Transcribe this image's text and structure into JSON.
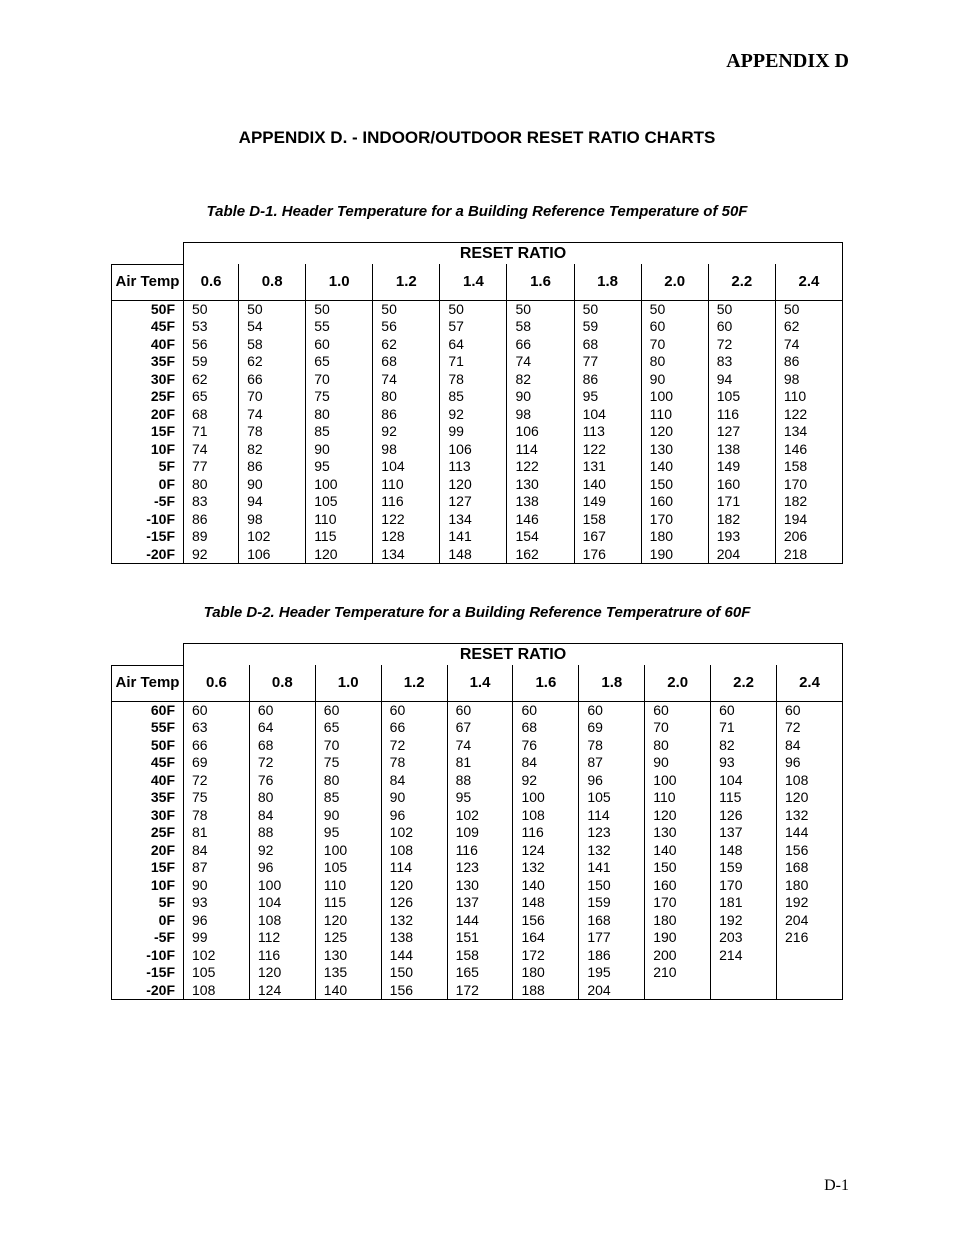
{
  "appendix_label": "APPENDIX D",
  "appendix_title": "APPENDIX D. - INDOOR/OUTDOOR RESET RATIO CHARTS",
  "page_number": "D-1",
  "tables": {
    "t1": {
      "caption": "Table D-1.  Header Temperature for a Building Reference Temperature of 50F",
      "reset_ratio_label": "RESET RATIO",
      "air_temp_label": "Air Temp",
      "columns": [
        "0.6",
        "0.8",
        "1.0",
        "1.2",
        "1.4",
        "1.6",
        "1.8",
        "2.0",
        "2.2",
        "2.4"
      ],
      "rows": [
        {
          "label": "50F",
          "v": [
            "50",
            "50",
            "50",
            "50",
            "50",
            "50",
            "50",
            "50",
            "50",
            "50"
          ]
        },
        {
          "label": "45F",
          "v": [
            "53",
            "54",
            "55",
            "56",
            "57",
            "58",
            "59",
            "60",
            "60",
            "62"
          ]
        },
        {
          "label": "40F",
          "v": [
            "56",
            "58",
            "60",
            "62",
            "64",
            "66",
            "68",
            "70",
            "72",
            "74"
          ]
        },
        {
          "label": "35F",
          "v": [
            "59",
            "62",
            "65",
            "68",
            "71",
            "74",
            "77",
            "80",
            "83",
            "86"
          ]
        },
        {
          "label": "30F",
          "v": [
            "62",
            "66",
            "70",
            "74",
            "78",
            "82",
            "86",
            "90",
            "94",
            "98"
          ]
        },
        {
          "label": "25F",
          "v": [
            "65",
            "70",
            "75",
            "80",
            "85",
            "90",
            "95",
            "100",
            "105",
            "110"
          ]
        },
        {
          "label": "20F",
          "v": [
            "68",
            "74",
            "80",
            "86",
            "92",
            "98",
            "104",
            "110",
            "116",
            "122"
          ]
        },
        {
          "label": "15F",
          "v": [
            "71",
            "78",
            "85",
            "92",
            "99",
            "106",
            "113",
            "120",
            "127",
            "134"
          ]
        },
        {
          "label": "10F",
          "v": [
            "74",
            "82",
            "90",
            "98",
            "106",
            "114",
            "122",
            "130",
            "138",
            "146"
          ]
        },
        {
          "label": "5F",
          "v": [
            "77",
            "86",
            "95",
            "104",
            "113",
            "122",
            "131",
            "140",
            "149",
            "158"
          ]
        },
        {
          "label": "0F",
          "v": [
            "80",
            "90",
            "100",
            "110",
            "120",
            "130",
            "140",
            "150",
            "160",
            "170"
          ]
        },
        {
          "label": "-5F",
          "v": [
            "83",
            "94",
            "105",
            "116",
            "127",
            "138",
            "149",
            "160",
            "171",
            "182"
          ]
        },
        {
          "label": "-10F",
          "v": [
            "86",
            "98",
            "110",
            "122",
            "134",
            "146",
            "158",
            "170",
            "182",
            "194"
          ]
        },
        {
          "label": "-15F",
          "v": [
            "89",
            "102",
            "115",
            "128",
            "141",
            "154",
            "167",
            "180",
            "193",
            "206"
          ]
        },
        {
          "label": "-20F",
          "v": [
            "92",
            "106",
            "120",
            "134",
            "148",
            "162",
            "176",
            "190",
            "204",
            "218"
          ]
        }
      ]
    },
    "t2": {
      "caption": "Table D-2.  Header Temperature for a Building Reference Temperatrure of 60F",
      "reset_ratio_label": "RESET RATIO",
      "air_temp_label": "Air Temp",
      "columns": [
        "0.6",
        "0.8",
        "1.0",
        "1.2",
        "1.4",
        "1.6",
        "1.8",
        "2.0",
        "2.2",
        "2.4"
      ],
      "rows": [
        {
          "label": "60F",
          "v": [
            "60",
            "60",
            "60",
            "60",
            "60",
            "60",
            "60",
            "60",
            "60",
            "60"
          ]
        },
        {
          "label": "55F",
          "v": [
            "63",
            "64",
            "65",
            "66",
            "67",
            "68",
            "69",
            "70",
            "71",
            "72"
          ]
        },
        {
          "label": "50F",
          "v": [
            "66",
            "68",
            "70",
            "72",
            "74",
            "76",
            "78",
            "80",
            "82",
            "84"
          ]
        },
        {
          "label": "45F",
          "v": [
            "69",
            "72",
            "75",
            "78",
            "81",
            "84",
            "87",
            "90",
            "93",
            "96"
          ]
        },
        {
          "label": "40F",
          "v": [
            "72",
            "76",
            "80",
            "84",
            "88",
            "92",
            "96",
            "100",
            "104",
            "108"
          ]
        },
        {
          "label": "35F",
          "v": [
            "75",
            "80",
            "85",
            "90",
            "95",
            "100",
            "105",
            "110",
            "115",
            "120"
          ]
        },
        {
          "label": "30F",
          "v": [
            "78",
            "84",
            "90",
            "96",
            "102",
            "108",
            "114",
            "120",
            "126",
            "132"
          ]
        },
        {
          "label": "25F",
          "v": [
            "81",
            "88",
            "95",
            "102",
            "109",
            "116",
            "123",
            "130",
            "137",
            "144"
          ]
        },
        {
          "label": "20F",
          "v": [
            "84",
            "92",
            "100",
            "108",
            "116",
            "124",
            "132",
            "140",
            "148",
            "156"
          ]
        },
        {
          "label": "15F",
          "v": [
            "87",
            "96",
            "105",
            "114",
            "123",
            "132",
            "141",
            "150",
            "159",
            "168"
          ]
        },
        {
          "label": "10F",
          "v": [
            "90",
            "100",
            "110",
            "120",
            "130",
            "140",
            "150",
            "160",
            "170",
            "180"
          ]
        },
        {
          "label": "5F",
          "v": [
            "93",
            "104",
            "115",
            "126",
            "137",
            "148",
            "159",
            "170",
            "181",
            "192"
          ]
        },
        {
          "label": "0F",
          "v": [
            "96",
            "108",
            "120",
            "132",
            "144",
            "156",
            "168",
            "180",
            "192",
            "204"
          ]
        },
        {
          "label": "-5F",
          "v": [
            "99",
            "112",
            "125",
            "138",
            "151",
            "164",
            "177",
            "190",
            "203",
            "216"
          ]
        },
        {
          "label": "-10F",
          "v": [
            "102",
            "116",
            "130",
            "144",
            "158",
            "172",
            "186",
            "200",
            "214",
            ""
          ]
        },
        {
          "label": "-15F",
          "v": [
            "105",
            "120",
            "135",
            "150",
            "165",
            "180",
            "195",
            "210",
            "",
            ""
          ]
        },
        {
          "label": "-20F",
          "v": [
            "108",
            "124",
            "140",
            "156",
            "172",
            "188",
            "204",
            "",
            "",
            ""
          ]
        }
      ]
    }
  }
}
